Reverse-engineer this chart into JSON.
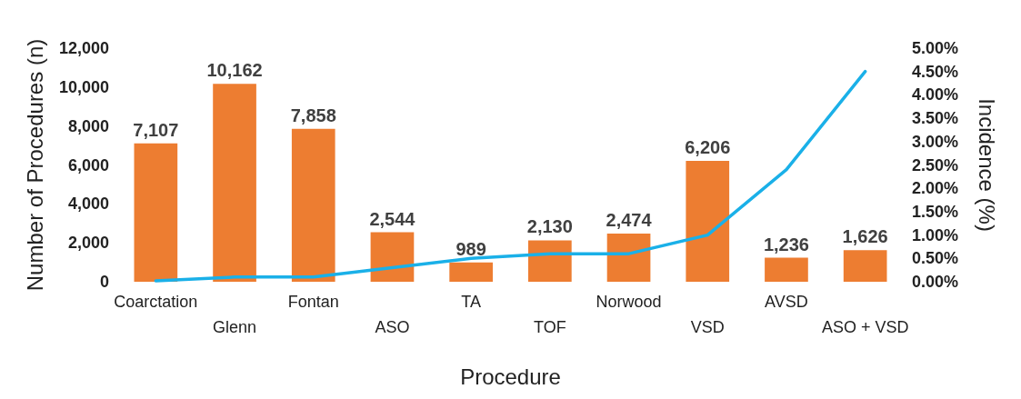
{
  "chart_data": {
    "type": "bar",
    "xlabel": "Procedure",
    "ylabel": "Number of Procedures (n)",
    "y2label": "Incidence (%)",
    "categories": [
      "Coarctation",
      "Glenn",
      "Fontan",
      "ASO",
      "TA",
      "TOF",
      "Norwood",
      "VSD",
      "AVSD",
      "ASO + VSD"
    ],
    "series": [
      {
        "color": "#ed7d31",
        "values": [
          7107,
          10162,
          7858,
          2544,
          989,
          2130,
          2474,
          6206,
          1236,
          1626
        ],
        "value_labels": [
          "7,107",
          "10,162",
          "7,858",
          "2,544",
          "989",
          "2,130",
          "2,474",
          "6,206",
          "1,236",
          "1,626"
        ]
      },
      {
        "type": "line",
        "axis": "y2",
        "color": "#1ab0e8",
        "marker": "none",
        "line_style": "solid",
        "values": [
          0.02,
          0.1,
          0.1,
          0.3,
          0.5,
          0.6,
          0.6,
          1.0,
          2.4,
          4.5
        ]
      }
    ],
    "ylim": [
      0,
      12000
    ],
    "yticks": [
      0,
      {
        "value": 2000,
        "label": "2,000"
      },
      {
        "value": 4000,
        "label": "4,000"
      },
      {
        "value": 6000,
        "label": "6,000"
      },
      {
        "value": 8000,
        "label": "8,000"
      },
      {
        "value": 10000,
        "label": "10,000"
      },
      {
        "value": 12000,
        "label": "12,000"
      }
    ],
    "y2lim": [
      0,
      5
    ],
    "y2ticks": [
      {
        "value": 0,
        "label": "0.00%"
      },
      {
        "value": 0.5,
        "label": "0.50%"
      },
      {
        "value": 1,
        "label": "1.00%"
      },
      {
        "value": 1.5,
        "label": "1.50%"
      },
      {
        "value": 2,
        "label": "2.00%"
      },
      {
        "value": 2.5,
        "label": "2.50%"
      },
      {
        "value": 3,
        "label": "3.00%"
      },
      {
        "value": 3.5,
        "label": "3.50%"
      },
      {
        "value": 4,
        "label": "4.00%"
      },
      {
        "value": 4.5,
        "label": "4.50%"
      },
      {
        "value": 5,
        "label": "5.00%"
      }
    ],
    "grid": false
  }
}
